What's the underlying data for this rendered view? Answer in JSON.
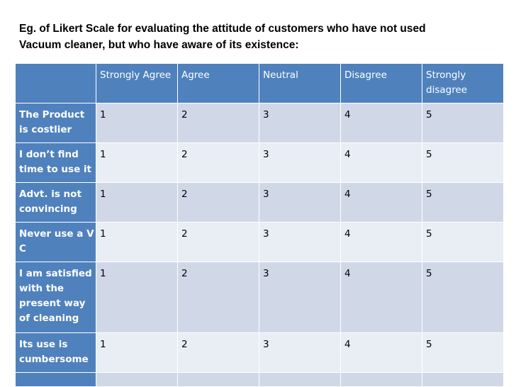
{
  "title": {
    "line1": "Eg. of Likert Scale for evaluating the attitude of customers who have not used",
    "line2": "Vacuum cleaner, but who have aware of its existence:"
  },
  "table": {
    "corner": "",
    "columns": [
      "Strongly Agree",
      "Agree",
      "Neutral",
      "Disagree",
      "Strongly disagree"
    ],
    "rows": [
      {
        "label": "The Product is costlier",
        "values": [
          "1",
          "2",
          "3",
          "4",
          "5"
        ]
      },
      {
        "label": "I don’t find time to use it",
        "values": [
          "1",
          "2",
          "3",
          "4",
          "5"
        ]
      },
      {
        "label": "Advt. is not convincing",
        "values": [
          "1",
          "2",
          "3",
          "4",
          "5"
        ]
      },
      {
        "label": "Never use a V C",
        "values": [
          "1",
          "2",
          "3",
          "4",
          "5"
        ]
      },
      {
        "label": "I am satisfied with the present way of cleaning",
        "values": [
          "1",
          "2",
          "3",
          "4",
          "5"
        ]
      },
      {
        "label": "Its use is cumbersome",
        "values": [
          "1",
          "2",
          "3",
          "4",
          "5"
        ]
      },
      {
        "label": "",
        "values": [
          "",
          "",
          "",
          "",
          ""
        ]
      }
    ]
  },
  "colors": {
    "header_bg": "#4f81bd",
    "row_odd_bg": "#d0d8e8",
    "row_even_bg": "#e9edf4",
    "header_text": "#ffffff"
  }
}
